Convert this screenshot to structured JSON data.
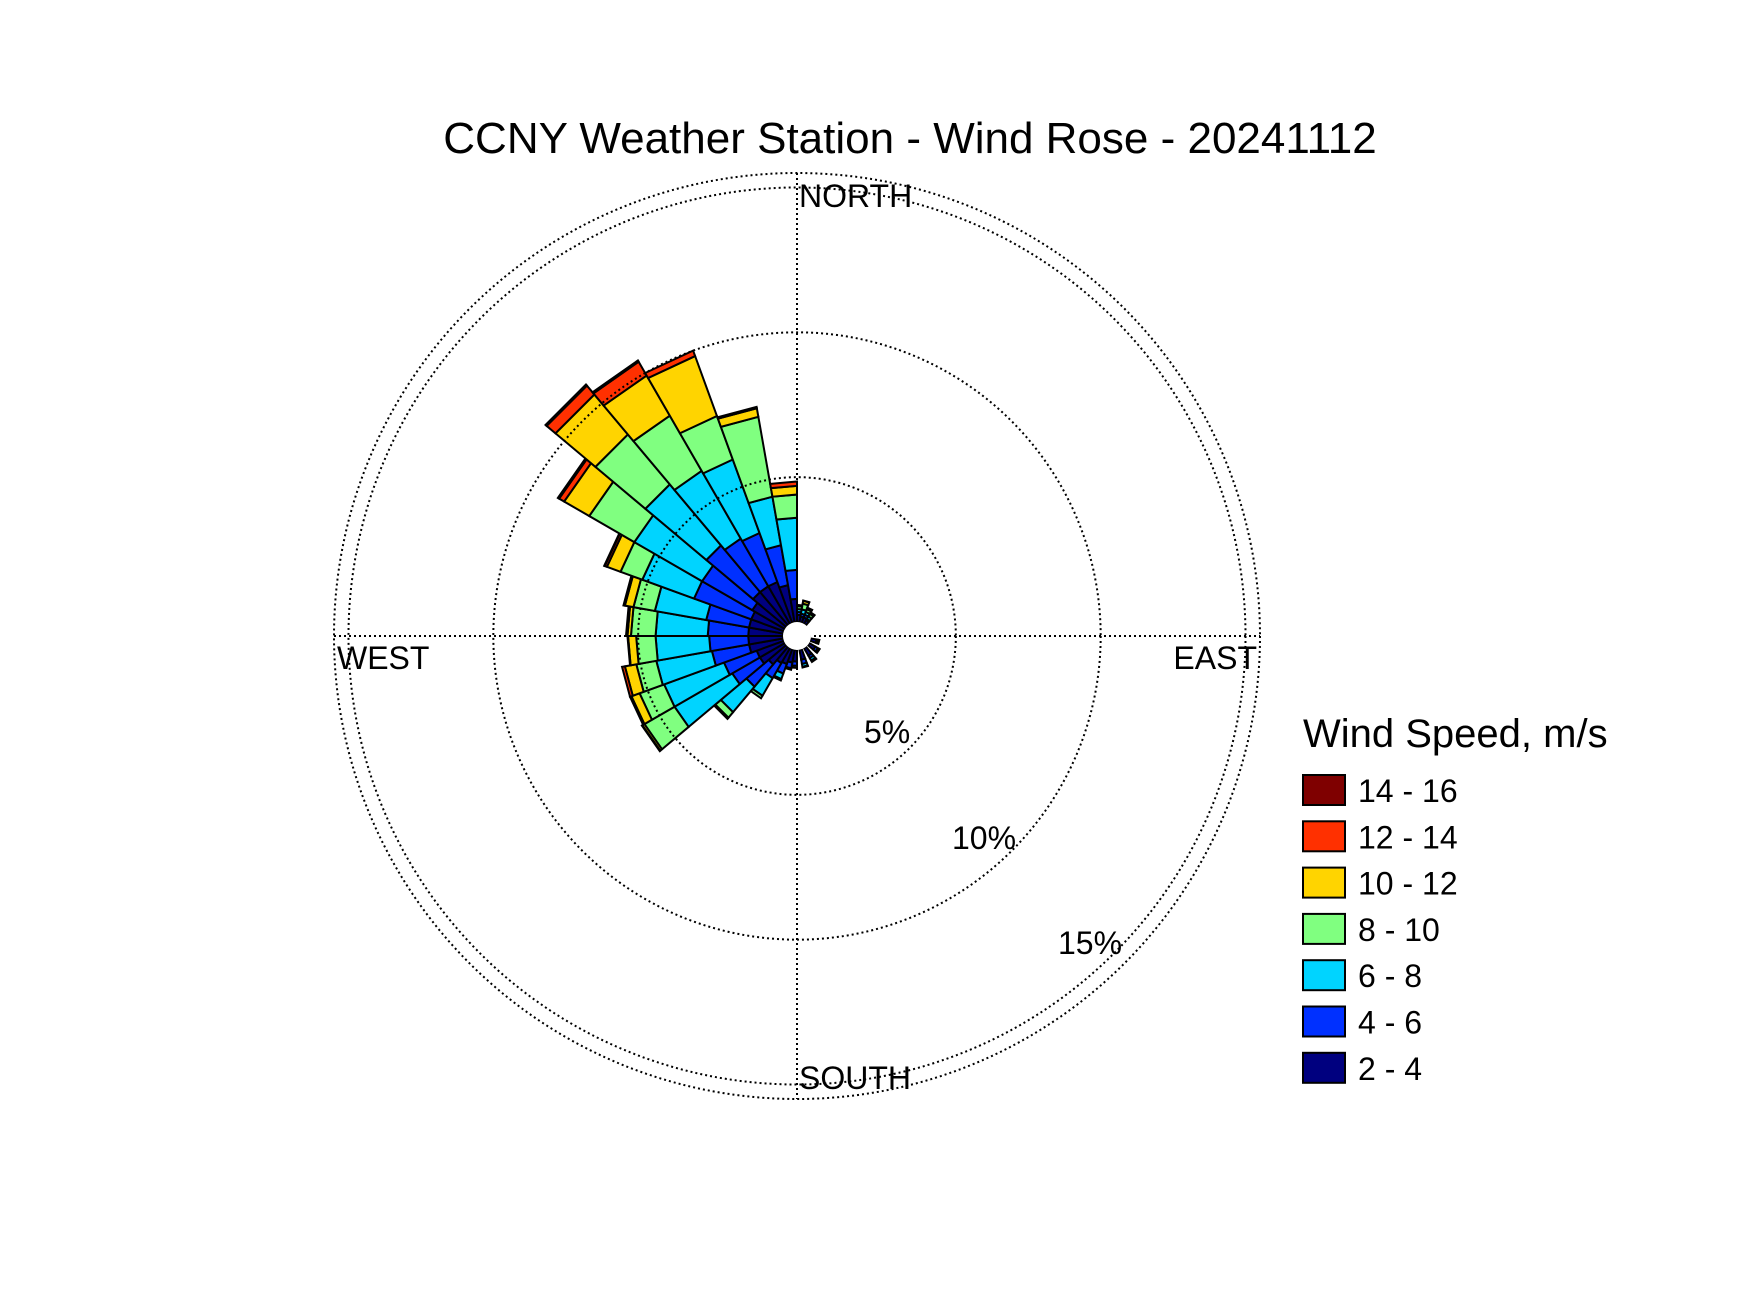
{
  "chart_data": {
    "type": "wind-rose",
    "title": "CCNY Weather Station - Wind Rose - 20241112",
    "compass": {
      "north": "NORTH",
      "south": "SOUTH",
      "east": "EAST",
      "west": "WEST"
    },
    "rings": [
      {
        "value": 5,
        "label": "5%"
      },
      {
        "value": 10,
        "label": "10%"
      },
      {
        "value": 15,
        "label": "15%"
      }
    ],
    "rlim": [
      0,
      15.5
    ],
    "calm_hole": true,
    "legend": {
      "title": "Wind Speed, m/s",
      "placement": "right"
    },
    "speed_bins": [
      {
        "label": "2 - 4",
        "color": "#00007f"
      },
      {
        "label": "4 - 6",
        "color": "#0030ff"
      },
      {
        "label": "6 - 8",
        "color": "#00d4ff"
      },
      {
        "label": "8 - 10",
        "color": "#80ff80"
      },
      {
        "label": "10 - 12",
        "color": "#ffd400"
      },
      {
        "label": "12 - 14",
        "color": "#ff3000"
      },
      {
        "label": "14 - 16",
        "color": "#7f0000"
      }
    ],
    "sector_width_deg": 10,
    "sectors": [
      {
        "direction": 5,
        "cumulative": [
          0.25,
          0.35,
          0.45,
          0.55,
          0.58,
          0.59,
          0.59
        ]
      },
      {
        "direction": 15,
        "cumulative": [
          0.2,
          0.3,
          0.45,
          0.65,
          0.75,
          0.76,
          0.76
        ]
      },
      {
        "direction": 25,
        "cumulative": [
          0.2,
          0.3,
          0.4,
          0.5,
          0.55,
          0.56,
          0.56
        ]
      },
      {
        "direction": 35,
        "cumulative": [
          0.15,
          0.2,
          0.3,
          0.4,
          0.45,
          0.46,
          0.46
        ]
      },
      {
        "direction": 105,
        "cumulative": [
          0.2,
          0.25,
          0.3,
          0.3,
          0.3,
          0.3,
          0.3
        ]
      },
      {
        "direction": 125,
        "cumulative": [
          0.25,
          0.35,
          0.4,
          0.42,
          0.42,
          0.42,
          0.42
        ]
      },
      {
        "direction": 145,
        "cumulative": [
          0.3,
          0.4,
          0.5,
          0.55,
          0.55,
          0.55,
          0.55
        ]
      },
      {
        "direction": 165,
        "cumulative": [
          0.35,
          0.5,
          0.6,
          0.62,
          0.62,
          0.62,
          0.62
        ]
      },
      {
        "direction": 185,
        "cumulative": [
          0.4,
          0.55,
          0.62,
          0.62,
          0.62,
          0.62,
          0.62
        ]
      },
      {
        "direction": 195,
        "cumulative": [
          0.45,
          0.65,
          0.7,
          0.7,
          0.7,
          0.7,
          0.7
        ]
      },
      {
        "direction": 205,
        "cumulative": [
          0.55,
          0.9,
          1.1,
          1.15,
          1.15,
          1.15,
          1.15
        ]
      },
      {
        "direction": 215,
        "cumulative": [
          0.6,
          1.2,
          1.9,
          2.0,
          2.0,
          2.0,
          2.0
        ]
      },
      {
        "direction": 225,
        "cumulative": [
          0.8,
          1.8,
          2.95,
          3.2,
          3.25,
          3.25,
          3.25
        ]
      },
      {
        "direction": 235,
        "cumulative": [
          1.0,
          2.1,
          4.4,
          5.6,
          5.68,
          5.7,
          5.7
        ]
      },
      {
        "direction": 245,
        "cumulative": [
          1.0,
          2.2,
          4.4,
          5.3,
          5.6,
          5.65,
          5.65
        ]
      },
      {
        "direction": 255,
        "cumulative": [
          1.2,
          2.5,
          4.45,
          5.15,
          5.55,
          5.65,
          5.65
        ]
      },
      {
        "direction": 265,
        "cumulative": [
          1.2,
          2.55,
          4.4,
          5.07,
          5.35,
          5.37,
          5.37
        ]
      },
      {
        "direction": 275,
        "cumulative": [
          1.2,
          2.6,
          4.4,
          5.25,
          5.37,
          5.42,
          5.42
        ]
      },
      {
        "direction": 285,
        "cumulative": [
          1.2,
          2.7,
          4.5,
          5.25,
          5.55,
          5.6,
          5.6
        ]
      },
      {
        "direction": 295,
        "cumulative": [
          1.2,
          3.3,
          5.2,
          6.0,
          6.5,
          6.58,
          6.6
        ]
      },
      {
        "direction": 305,
        "cumulative": [
          1.3,
          3.3,
          6.0,
          7.8,
          8.8,
          9.0,
          9.05
        ]
      },
      {
        "direction": 315,
        "cumulative": [
          1.5,
          3.6,
          6.35,
          8.6,
          10.4,
          10.8,
          10.85
        ]
      },
      {
        "direction": 325,
        "cumulative": [
          1.5,
          3.4,
          6.1,
          8.3,
          9.9,
          10.45,
          10.5
        ]
      },
      {
        "direction": 335,
        "cumulative": [
          1.5,
          3.3,
          6.0,
          7.6,
          9.8,
          10.0,
          10.0
        ]
      },
      {
        "direction": 345,
        "cumulative": [
          1.3,
          2.7,
          4.4,
          7.2,
          7.5,
          7.55,
          7.55
        ]
      },
      {
        "direction": 355,
        "cumulative": [
          0.8,
          1.8,
          3.6,
          4.4,
          4.7,
          4.85,
          4.85
        ]
      }
    ]
  }
}
